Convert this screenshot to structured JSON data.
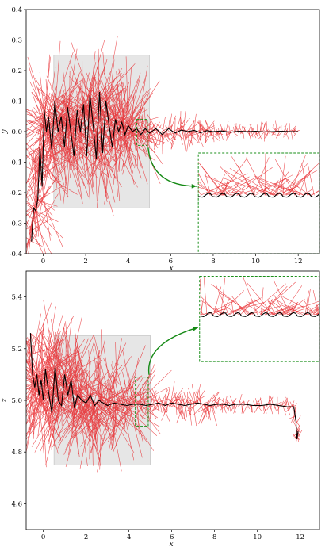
{
  "colors": {
    "trajectory": "#000000",
    "arrows": "#e8262a",
    "shade": "#e6e6e6",
    "zoom": "#1a8f1a",
    "arrow": "#158a15"
  },
  "chart_data": [
    {
      "type": "line",
      "xlabel": "x",
      "ylabel": "y",
      "xlim": [
        -0.8,
        13.0
      ],
      "ylim": [
        -0.4,
        0.4
      ],
      "xticks": [
        "0",
        "2",
        "4",
        "6",
        "8",
        "10",
        "12"
      ],
      "xtick_values": [
        0,
        2,
        4,
        6,
        8,
        10,
        12
      ],
      "yticks": [
        "0.4",
        "0.3",
        "0.2",
        "0.1",
        "0.0",
        "-0.1",
        "-0.2",
        "-0.3",
        "-0.4"
      ],
      "ytick_values": [
        0.4,
        0.3,
        0.2,
        0.1,
        0.0,
        -0.1,
        -0.2,
        -0.3,
        -0.4
      ],
      "shaded_region": {
        "x": [
          0.5,
          5.0
        ],
        "y": [
          -0.25,
          0.25
        ]
      },
      "zoom_region": {
        "x": [
          4.4,
          4.9
        ],
        "y": [
          -0.045,
          0.04
        ]
      },
      "zoom_inset": {
        "x": [
          7.3,
          13.0
        ],
        "y": [
          -0.4,
          -0.07
        ]
      },
      "grid": false,
      "series": [
        {
          "x": [
            -0.55,
            -0.45,
            -0.35,
            -0.25,
            -0.15,
            -0.05,
            0.05,
            0.15,
            0.25,
            0.4,
            0.55,
            0.7,
            0.85,
            1.0,
            1.15,
            1.3,
            1.45,
            1.6,
            1.75,
            1.9,
            2.05,
            2.2,
            2.35,
            2.5,
            2.65,
            2.8,
            2.95,
            3.1,
            3.25,
            3.4,
            3.55,
            3.7,
            3.85,
            4.0,
            4.2,
            4.4,
            4.6,
            4.8,
            5.0,
            5.3,
            5.6,
            5.9,
            6.2,
            6.5,
            6.8,
            7.1,
            7.4,
            7.7,
            8.0,
            8.4,
            8.8,
            9.2,
            9.6,
            10.0,
            10.4,
            10.8,
            11.2,
            11.6,
            12.0
          ],
          "y": [
            -0.36,
            -0.25,
            -0.26,
            -0.22,
            -0.05,
            -0.18,
            0.07,
            0.0,
            0.05,
            -0.06,
            0.1,
            0.0,
            0.05,
            -0.05,
            0.08,
            0.0,
            -0.08,
            0.07,
            0.0,
            0.09,
            -0.08,
            0.12,
            0.02,
            -0.09,
            0.13,
            -0.07,
            0.1,
            0.02,
            -0.05,
            0.04,
            0.0,
            0.03,
            -0.01,
            0.02,
            0.0,
            0.01,
            -0.01,
            0.01,
            -0.005,
            0.01,
            -0.01,
            0.01,
            -0.005,
            0.005,
            0.0,
            0.004,
            -0.004,
            0.003,
            0.0,
            0.002,
            -0.002,
            0.001,
            0.0,
            0.001,
            -0.001,
            0.0,
            0.001,
            0.0,
            0.0
          ]
        }
      ]
    },
    {
      "type": "line",
      "xlabel": "x",
      "ylabel": "z",
      "xlim": [
        -0.8,
        12.9
      ],
      "ylim": [
        4.5,
        5.5
      ],
      "xticks": [
        "0",
        "2",
        "4",
        "6",
        "8",
        "10",
        "12"
      ],
      "xtick_values": [
        0,
        2,
        4,
        6,
        8,
        10,
        12
      ],
      "yticks": [
        "5.4",
        "5.2",
        "5.0",
        "4.8",
        "4.6"
      ],
      "ytick_values": [
        5.4,
        5.2,
        5.0,
        4.8,
        4.6
      ],
      "shaded_region": {
        "x": [
          0.5,
          5.0
        ],
        "y": [
          4.75,
          5.25
        ]
      },
      "zoom_region": {
        "x": [
          4.3,
          4.9
        ],
        "y": [
          4.9,
          5.09
        ]
      },
      "zoom_inset": {
        "x": [
          7.3,
          12.9
        ],
        "y": [
          5.15,
          5.48
        ]
      },
      "grid": false,
      "series": [
        {
          "x": [
            -0.6,
            -0.5,
            -0.4,
            -0.3,
            -0.2,
            -0.1,
            0.0,
            0.1,
            0.25,
            0.4,
            0.55,
            0.7,
            0.85,
            1.0,
            1.15,
            1.3,
            1.45,
            1.6,
            1.8,
            2.0,
            2.2,
            2.4,
            2.6,
            2.8,
            3.0,
            3.3,
            3.6,
            3.9,
            4.2,
            4.5,
            4.8,
            5.1,
            5.4,
            5.7,
            6.0,
            6.3,
            6.6,
            6.9,
            7.2,
            7.5,
            7.8,
            8.1,
            8.4,
            8.7,
            9.0,
            9.4,
            9.8,
            10.2,
            10.6,
            11.0,
            11.4,
            11.7,
            11.8,
            11.85,
            11.9
          ],
          "y": [
            5.26,
            5.1,
            5.05,
            5.1,
            5.02,
            5.08,
            5.0,
            5.12,
            5.03,
            4.95,
            5.13,
            5.0,
            4.98,
            5.1,
            5.02,
            5.08,
            4.97,
            5.02,
            5.0,
            4.99,
            5.02,
            4.98,
            5.0,
            4.99,
            4.98,
            4.99,
            4.985,
            4.98,
            4.985,
            4.985,
            4.98,
            4.985,
            4.99,
            4.98,
            4.99,
            4.985,
            4.98,
            4.985,
            4.99,
            4.985,
            4.98,
            4.985,
            4.985,
            4.98,
            4.985,
            4.985,
            4.98,
            4.98,
            4.985,
            4.98,
            4.975,
            4.975,
            4.92,
            4.85,
            4.88
          ]
        }
      ]
    }
  ]
}
